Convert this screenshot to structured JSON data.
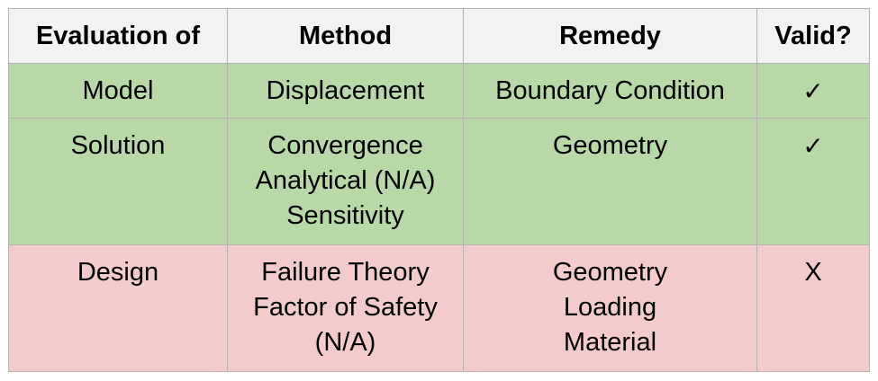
{
  "table": {
    "headers": [
      "Evaluation of",
      "Method",
      "Remedy",
      "Valid?"
    ],
    "rows": [
      {
        "evaluation": "Model",
        "method": [
          "Displacement"
        ],
        "remedy": [
          "Boundary Condition"
        ],
        "valid": "✓",
        "status_color": "#b8d9a7"
      },
      {
        "evaluation": "Solution",
        "method": [
          "Convergence",
          "Analytical (N/A)",
          "Sensitivity"
        ],
        "remedy": [
          "Geometry"
        ],
        "valid": "✓",
        "status_color": "#b8d9a7"
      },
      {
        "evaluation": "Design",
        "method": [
          "Failure Theory",
          "Factor of Safety",
          "(N/A)"
        ],
        "remedy": [
          "Geometry",
          "Loading",
          "Material"
        ],
        "valid": "X",
        "status_color": "#f4cbcb"
      }
    ],
    "header_color": "#f2f2f2",
    "border_color": "#b3b3b3"
  }
}
